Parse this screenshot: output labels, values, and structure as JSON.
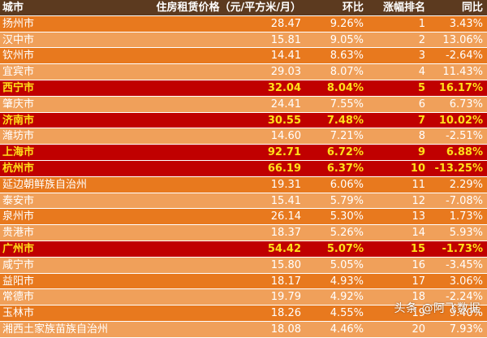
{
  "header": {
    "city": "城市",
    "price": "住房租赁价格（元/平方米/月）",
    "mom": "环比",
    "rank": "涨幅排名",
    "yoy": "同比"
  },
  "rows": [
    {
      "city": "扬州市",
      "price": "28.47",
      "mom": "9.26%",
      "rank": "1",
      "yoy": "3.43%",
      "highlight": false
    },
    {
      "city": "汉中市",
      "price": "15.81",
      "mom": "9.05%",
      "rank": "2",
      "yoy": "13.06%",
      "highlight": false
    },
    {
      "city": "钦州市",
      "price": "14.41",
      "mom": "8.63%",
      "rank": "3",
      "yoy": "-2.64%",
      "highlight": false
    },
    {
      "city": "宜宾市",
      "price": "29.03",
      "mom": "8.07%",
      "rank": "4",
      "yoy": "11.43%",
      "highlight": false
    },
    {
      "city": "西宁市",
      "price": "32.04",
      "mom": "8.04%",
      "rank": "5",
      "yoy": "16.17%",
      "highlight": true
    },
    {
      "city": "肇庆市",
      "price": "24.41",
      "mom": "7.55%",
      "rank": "6",
      "yoy": "6.73%",
      "highlight": false
    },
    {
      "city": "济南市",
      "price": "30.55",
      "mom": "7.48%",
      "rank": "7",
      "yoy": "10.02%",
      "highlight": true
    },
    {
      "city": "潍坊市",
      "price": "14.60",
      "mom": "7.21%",
      "rank": "8",
      "yoy": "-2.51%",
      "highlight": false
    },
    {
      "city": "上海市",
      "price": "92.71",
      "mom": "6.72%",
      "rank": "9",
      "yoy": "6.88%",
      "highlight": true
    },
    {
      "city": "杭州市",
      "price": "66.19",
      "mom": "6.37%",
      "rank": "10",
      "yoy": "-13.25%",
      "highlight": true
    },
    {
      "city": "延边朝鲜族自治州",
      "price": "19.31",
      "mom": "6.06%",
      "rank": "11",
      "yoy": "2.29%",
      "highlight": false
    },
    {
      "city": "泰安市",
      "price": "15.41",
      "mom": "5.79%",
      "rank": "12",
      "yoy": "-7.08%",
      "highlight": false
    },
    {
      "city": "泉州市",
      "price": "26.14",
      "mom": "5.30%",
      "rank": "13",
      "yoy": "1.73%",
      "highlight": false
    },
    {
      "city": "贵港市",
      "price": "18.37",
      "mom": "5.26%",
      "rank": "14",
      "yoy": "5.93%",
      "highlight": false
    },
    {
      "city": "广州市",
      "price": "54.42",
      "mom": "5.07%",
      "rank": "15",
      "yoy": "-1.73%",
      "highlight": true
    },
    {
      "city": "咸宁市",
      "price": "15.80",
      "mom": "5.05%",
      "rank": "16",
      "yoy": "-3.45%",
      "highlight": false
    },
    {
      "city": "益阳市",
      "price": "18.17",
      "mom": "4.93%",
      "rank": "17",
      "yoy": "3.06%",
      "highlight": false
    },
    {
      "city": "常德市",
      "price": "19.79",
      "mom": "4.92%",
      "rank": "18",
      "yoy": "-2.24%",
      "highlight": false
    },
    {
      "city": "玉林市",
      "price": "18.26",
      "mom": "4.55%",
      "rank": "19",
      "yoy": "9.40%",
      "highlight": false
    },
    {
      "city": "湘西土家族苗族自治州",
      "price": "18.08",
      "mom": "4.46%",
      "rank": "20",
      "yoy": "7.93%",
      "highlight": false
    }
  ],
  "watermark": "头条 @阿飞数据",
  "colors": {
    "header_bg": "#5c3a1f",
    "row_light": "#f0a05a",
    "row_dark": "#e8791e",
    "highlight_bg": "#c00000",
    "highlight_text": "#ffe01a"
  }
}
